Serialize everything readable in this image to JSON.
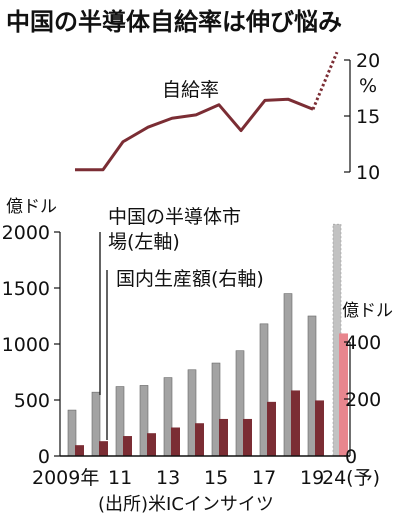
{
  "title": "中国の半導体自給率は伸び悩み",
  "source": "(出所)米ICインサイツ",
  "chart_data": [
    {
      "type": "line",
      "name": "self_sufficiency",
      "series_label": "自給率",
      "x": [
        2009,
        2010,
        2011,
        2012,
        2013,
        2014,
        2015,
        2016,
        2017,
        2018,
        2019,
        2024
      ],
      "values": [
        10.2,
        10.2,
        12.7,
        14.0,
        14.8,
        15.1,
        16.0,
        13.7,
        16.4,
        16.5,
        15.6,
        20.7
      ],
      "forecast_from_index": 10,
      "ylim": [
        10,
        20
      ],
      "yticks": [
        "20",
        "15",
        "10"
      ],
      "yunit": "%",
      "color": "#7b2d34"
    },
    {
      "type": "bar",
      "categories": [
        "2009",
        "2010",
        "2011",
        "2012",
        "2013",
        "2014",
        "2015",
        "2016",
        "2017",
        "2018",
        "2019",
        "2024"
      ],
      "xtick_labels": [
        "2009年",
        "",
        "11",
        "",
        "13",
        "",
        "15",
        "",
        "17",
        "",
        "19",
        "24(予)"
      ],
      "series": [
        {
          "name": "中国の半導体市場(左軸)",
          "axis": "left",
          "values": [
            410,
            570,
            620,
            630,
            700,
            770,
            830,
            940,
            1180,
            1450,
            1250,
            2070
          ],
          "color": "#a3a3a3",
          "forecast_color": "#c2c2c2"
        },
        {
          "name": "国内生産額(右軸)",
          "axis": "right",
          "values": [
            38,
            52,
            70,
            80,
            100,
            115,
            130,
            130,
            190,
            230,
            195,
            430
          ],
          "color": "#7b2d34",
          "forecast_color": "#e8868e"
        }
      ],
      "left_axis": {
        "unit": "億ドル",
        "ticks": [
          "2000",
          "1500",
          "1000",
          "500",
          "0"
        ],
        "ylim": [
          0,
          2000
        ]
      },
      "right_axis": {
        "unit": "億ドル",
        "ticks": [
          "400",
          "200",
          "0"
        ],
        "ylim": [
          0,
          400
        ]
      }
    }
  ]
}
